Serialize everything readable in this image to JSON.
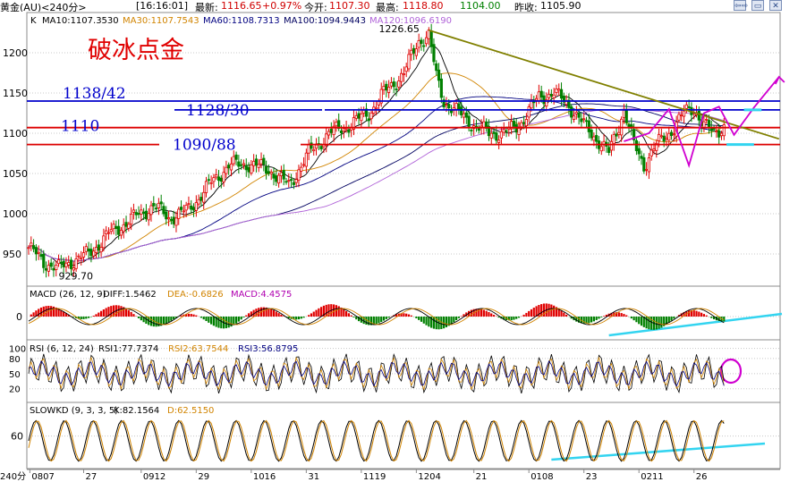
{
  "header": {
    "symbol": "黄金(AU)<240分>",
    "time": "[16:16:01]",
    "latest_label": "最新:",
    "latest": "1116.65",
    "change": "+0.97%",
    "open_label": "今开:",
    "open": "1107.30",
    "high_label": "最高:",
    "high": "1118.80",
    "low_label": "",
    "low": "1104.00",
    "prev_label": "昨收:",
    "prev": "1105.90",
    "buttons": [
      "⇦⇨",
      "▭",
      "✕"
    ]
  },
  "colors": {
    "ma10": "#000000",
    "ma30": "#d18400",
    "ma60": "#000080",
    "ma100": "#000060",
    "ma120": "#b063d8",
    "up": "#e00000",
    "down": "#008000",
    "hline_blue": "#0000cc",
    "hline_red": "#dd0000",
    "trend": "#808000",
    "zigzag": "#d000d0",
    "cyan": "#33d4f0"
  },
  "chart_data": [
    {
      "type": "candlestick",
      "title": "破冰点金",
      "ma_legend": {
        "k": "K",
        "ma10": "MA10:1107.3530",
        "ma30": "MA30:1107.7543",
        "ma60": "MA60:1108.7313",
        "ma100": "MA100:1094.9443",
        "ma120": "MA120:1096.6190"
      },
      "ylim": [
        910,
        1250
      ],
      "yticks": [
        950,
        1000,
        1050,
        1100,
        1150,
        1200
      ],
      "x_ticks": [
        "0807",
        "27",
        "0912",
        "29",
        "1016",
        "31",
        "1119",
        "1204",
        "21",
        "0108",
        "23",
        "0211",
        "26"
      ],
      "x_axis_label": "240分",
      "close_path": [
        [
          0,
          958
        ],
        [
          6,
          940
        ],
        [
          12,
          932
        ],
        [
          18,
          942
        ],
        [
          24,
          950
        ],
        [
          32,
          975
        ],
        [
          42,
          995
        ],
        [
          50,
          1010
        ],
        [
          56,
          995
        ],
        [
          64,
          1005
        ],
        [
          72,
          1035
        ],
        [
          80,
          1060
        ],
        [
          88,
          1062
        ],
        [
          96,
          1055
        ],
        [
          104,
          1035
        ],
        [
          112,
          1075
        ],
        [
          120,
          1100
        ],
        [
          128,
          1110
        ],
        [
          136,
          1125
        ],
        [
          142,
          1150
        ],
        [
          150,
          1175
        ],
        [
          156,
          1215
        ],
        [
          160,
          1222
        ],
        [
          163,
          1170
        ],
        [
          166,
          1140
        ],
        [
          172,
          1125
        ],
        [
          178,
          1110
        ],
        [
          184,
          1100
        ],
        [
          190,
          1100
        ],
        [
          196,
          1110
        ],
        [
          204,
          1145
        ],
        [
          210,
          1150
        ],
        [
          216,
          1135
        ],
        [
          222,
          1110
        ],
        [
          228,
          1090
        ],
        [
          232,
          1075
        ],
        [
          236,
          1110
        ],
        [
          238,
          1130
        ],
        [
          242,
          1085
        ],
        [
          246,
          1060
        ],
        [
          250,
          1082
        ],
        [
          256,
          1100
        ],
        [
          262,
          1125
        ],
        [
          266,
          1132
        ],
        [
          270,
          1110
        ],
        [
          274,
          1100
        ],
        [
          278,
          1110
        ]
      ],
      "annotations": {
        "high_label": "1226.65",
        "low_label": "929.70",
        "levels": [
          {
            "label": "1138/42",
            "value": 1140,
            "color": "blue"
          },
          {
            "label": "1128/30",
            "value": 1129,
            "color": "blue"
          },
          {
            "label": "1110",
            "value": 1107,
            "color": "red"
          },
          {
            "label": "1090/88",
            "value": 1086,
            "color": "red"
          }
        ],
        "trendline": [
          [
            160,
            1228
          ],
          [
            300,
            1093
          ]
        ]
      }
    },
    {
      "type": "bar",
      "title": "MACD (26, 12, 9)",
      "legend": {
        "diff": "DIFF:1.5462",
        "dea": "DEA:-0.6826",
        "macd": "MACD:4.4575"
      },
      "yticks": [
        0
      ]
    },
    {
      "type": "line",
      "title": "RSI (6, 12, 24)",
      "legend": {
        "rsi1": "RSI1:77.7374",
        "rsi2": "RSI2:63.7544",
        "rsi3": "RSI3:56.8795"
      },
      "ylim": [
        0,
        110
      ],
      "yticks": [
        20,
        50,
        80,
        100
      ]
    },
    {
      "type": "line",
      "title": "SLOWKD (9, 3, 3, 5)",
      "legend": {
        "k": "K:82.1564",
        "d": "D:62.5150"
      },
      "ylim": [
        0,
        100
      ],
      "yticks": [
        60
      ]
    }
  ]
}
